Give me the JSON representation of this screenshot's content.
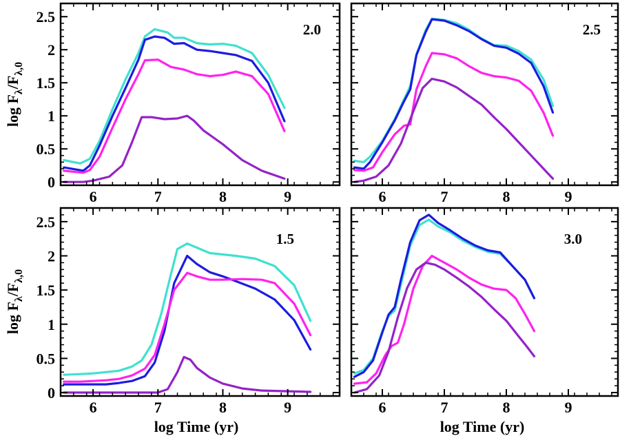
{
  "figure": {
    "ylabel_main": "log  F",
    "ylabel_sub1": "λ",
    "ylabel_mid": "/F",
    "ylabel_sub2": "λ,0",
    "xlabel": "log Time (yr)"
  },
  "chart_data": [
    {
      "type": "line",
      "label": "2.0",
      "xlim": [
        5.5,
        9.8
      ],
      "ylim": [
        -0.05,
        2.7
      ],
      "xticks": [
        6,
        7,
        8,
        9
      ],
      "xtick_labels": [
        "6",
        "7",
        "8",
        "9"
      ],
      "yticks": [
        0,
        0.5,
        1,
        1.5,
        2,
        2.5
      ],
      "ytick_labels": [
        "0",
        "0.5",
        "1",
        "1.5",
        "2",
        "2.5"
      ],
      "ylabel": "log Fλ/Fλ,0",
      "xlabel": "",
      "series": [
        {
          "name": "cyan",
          "color": "#40e0d0",
          "x": [
            5.55,
            5.8,
            5.95,
            6.1,
            6.3,
            6.5,
            6.7,
            6.8,
            6.95,
            7.15,
            7.25,
            7.4,
            7.5,
            7.6,
            7.8,
            8.0,
            8.2,
            8.45,
            8.7,
            8.95
          ],
          "y": [
            0.33,
            0.28,
            0.35,
            0.62,
            1.1,
            1.55,
            1.95,
            2.2,
            2.31,
            2.26,
            2.18,
            2.18,
            2.14,
            2.1,
            2.08,
            2.09,
            2.06,
            1.95,
            1.62,
            1.12
          ]
        },
        {
          "name": "blue",
          "color": "#1c1cdf",
          "x": [
            5.55,
            5.85,
            5.95,
            6.1,
            6.3,
            6.5,
            6.7,
            6.8,
            6.95,
            7.1,
            7.25,
            7.4,
            7.5,
            7.6,
            7.8,
            8.0,
            8.2,
            8.45,
            8.7,
            8.95
          ],
          "y": [
            0.22,
            0.17,
            0.25,
            0.55,
            1.0,
            1.42,
            1.85,
            2.15,
            2.2,
            2.18,
            2.09,
            2.1,
            2.05,
            2.0,
            1.98,
            1.95,
            1.92,
            1.83,
            1.5,
            0.92
          ]
        },
        {
          "name": "magenta",
          "color": "#ff22ee",
          "x": [
            5.55,
            5.85,
            5.95,
            6.1,
            6.3,
            6.5,
            6.7,
            6.8,
            7.0,
            7.2,
            7.4,
            7.6,
            7.8,
            8.0,
            8.2,
            8.45,
            8.7,
            8.95
          ],
          "y": [
            0.17,
            0.14,
            0.18,
            0.38,
            0.82,
            1.25,
            1.63,
            1.84,
            1.85,
            1.74,
            1.7,
            1.63,
            1.6,
            1.62,
            1.67,
            1.6,
            1.33,
            0.77
          ]
        },
        {
          "name": "purple",
          "color": "#9422c8",
          "x": [
            5.55,
            5.85,
            6.0,
            6.25,
            6.45,
            6.6,
            6.75,
            6.9,
            7.1,
            7.3,
            7.45,
            7.55,
            7.7,
            8.0,
            8.3,
            8.6,
            8.95
          ],
          "y": [
            0.0,
            0.0,
            0.02,
            0.08,
            0.25,
            0.6,
            0.98,
            0.98,
            0.95,
            0.96,
            1.0,
            0.93,
            0.78,
            0.57,
            0.33,
            0.17,
            0.05
          ]
        }
      ]
    },
    {
      "type": "line",
      "label": "2.5",
      "xlim": [
        5.5,
        9.8
      ],
      "ylim": [
        -0.05,
        2.7
      ],
      "xticks": [
        6,
        7,
        8,
        9
      ],
      "xtick_labels": [
        "6",
        "7",
        "8",
        "9"
      ],
      "yticks": [
        0,
        0.5,
        1,
        1.5,
        2,
        2.5
      ],
      "ytick_labels": [
        "",
        "",
        "",
        "",
        "",
        ""
      ],
      "ylabel": "",
      "xlabel": "",
      "series": [
        {
          "name": "cyan",
          "color": "#40e0d0",
          "x": [
            5.55,
            5.7,
            5.8,
            6.0,
            6.2,
            6.35,
            6.45,
            6.55,
            6.7,
            6.8,
            7.0,
            7.2,
            7.4,
            7.6,
            7.8,
            8.0,
            8.2,
            8.4,
            8.6,
            8.75
          ],
          "y": [
            0.32,
            0.3,
            0.38,
            0.62,
            0.95,
            1.25,
            1.45,
            1.93,
            2.3,
            2.47,
            2.45,
            2.4,
            2.3,
            2.17,
            2.07,
            2.06,
            1.98,
            1.85,
            1.55,
            1.15
          ]
        },
        {
          "name": "blue",
          "color": "#1c1cdf",
          "x": [
            5.55,
            5.7,
            5.8,
            6.0,
            6.2,
            6.35,
            6.45,
            6.55,
            6.7,
            6.8,
            7.0,
            7.2,
            7.4,
            7.6,
            7.8,
            8.0,
            8.2,
            8.4,
            8.6,
            8.75
          ],
          "y": [
            0.22,
            0.2,
            0.3,
            0.6,
            0.93,
            1.22,
            1.4,
            1.92,
            2.27,
            2.46,
            2.44,
            2.37,
            2.28,
            2.16,
            2.06,
            2.03,
            1.94,
            1.8,
            1.45,
            1.05
          ]
        },
        {
          "name": "magenta",
          "color": "#ff22ee",
          "x": [
            5.55,
            5.7,
            5.85,
            6.0,
            6.2,
            6.35,
            6.45,
            6.55,
            6.7,
            6.8,
            7.0,
            7.2,
            7.4,
            7.6,
            7.8,
            8.0,
            8.2,
            8.4,
            8.6,
            8.75
          ],
          "y": [
            0.18,
            0.17,
            0.22,
            0.45,
            0.72,
            0.85,
            0.87,
            1.4,
            1.75,
            1.95,
            1.93,
            1.87,
            1.75,
            1.65,
            1.6,
            1.58,
            1.53,
            1.38,
            1.05,
            0.7
          ]
        },
        {
          "name": "purple",
          "color": "#9422c8",
          "x": [
            5.55,
            5.7,
            5.9,
            6.1,
            6.3,
            6.5,
            6.65,
            6.8,
            7.0,
            7.2,
            7.4,
            7.6,
            7.8,
            8.0,
            8.2,
            8.4,
            8.6,
            8.75
          ],
          "y": [
            0.0,
            0.02,
            0.08,
            0.25,
            0.58,
            1.07,
            1.42,
            1.56,
            1.52,
            1.43,
            1.3,
            1.17,
            0.98,
            0.8,
            0.6,
            0.4,
            0.2,
            0.05
          ]
        }
      ]
    },
    {
      "type": "line",
      "label": "1.5",
      "xlim": [
        5.5,
        9.8
      ],
      "ylim": [
        -0.05,
        2.7
      ],
      "xticks": [
        6,
        7,
        8,
        9
      ],
      "xtick_labels": [
        "6",
        "7",
        "8",
        "9"
      ],
      "yticks": [
        0,
        0.5,
        1,
        1.5,
        2,
        2.5
      ],
      "ytick_labels": [
        "0",
        "0.5",
        "1",
        "1.5",
        "2",
        "2.5"
      ],
      "ylabel": "log Fλ/Fλ,0",
      "xlabel": "log Time (yr)",
      "series": [
        {
          "name": "cyan",
          "color": "#40e0d0",
          "x": [
            5.55,
            5.8,
            6.0,
            6.2,
            6.4,
            6.6,
            6.75,
            6.9,
            7.05,
            7.2,
            7.3,
            7.45,
            7.6,
            7.8,
            8.0,
            8.2,
            8.5,
            8.8,
            9.1,
            9.35
          ],
          "y": [
            0.26,
            0.27,
            0.28,
            0.3,
            0.32,
            0.38,
            0.47,
            0.7,
            1.15,
            1.73,
            2.1,
            2.18,
            2.12,
            2.04,
            2.02,
            2.0,
            1.96,
            1.85,
            1.57,
            1.05
          ]
        },
        {
          "name": "blue",
          "color": "#1c1cdf",
          "x": [
            5.55,
            5.8,
            6.0,
            6.2,
            6.4,
            6.6,
            6.8,
            6.95,
            7.1,
            7.25,
            7.45,
            7.6,
            7.8,
            8.0,
            8.2,
            8.5,
            8.8,
            9.1,
            9.35
          ],
          "y": [
            0.12,
            0.12,
            0.12,
            0.12,
            0.14,
            0.17,
            0.24,
            0.44,
            0.9,
            1.6,
            2.0,
            1.88,
            1.76,
            1.7,
            1.63,
            1.52,
            1.36,
            1.06,
            0.63
          ]
        },
        {
          "name": "magenta",
          "color": "#ff22ee",
          "x": [
            5.55,
            5.8,
            6.0,
            6.2,
            6.4,
            6.6,
            6.8,
            6.95,
            7.1,
            7.25,
            7.45,
            7.6,
            7.8,
            8.0,
            8.3,
            8.6,
            8.8,
            9.1,
            9.35
          ],
          "y": [
            0.16,
            0.16,
            0.17,
            0.18,
            0.2,
            0.25,
            0.35,
            0.55,
            1.0,
            1.5,
            1.75,
            1.7,
            1.65,
            1.65,
            1.66,
            1.65,
            1.6,
            1.3,
            0.84
          ]
        },
        {
          "name": "purple",
          "color": "#9422c8",
          "x": [
            5.55,
            6.0,
            6.5,
            7.0,
            7.15,
            7.3,
            7.4,
            7.5,
            7.6,
            7.8,
            8.0,
            8.3,
            8.6,
            9.0,
            9.35
          ],
          "y": [
            0.0,
            0.0,
            0.0,
            0.0,
            0.05,
            0.3,
            0.52,
            0.48,
            0.36,
            0.22,
            0.13,
            0.06,
            0.03,
            0.02,
            0.01
          ]
        }
      ]
    },
    {
      "type": "line",
      "label": "3.0",
      "xlim": [
        5.5,
        9.8
      ],
      "ylim": [
        -0.05,
        2.7
      ],
      "xticks": [
        6,
        7,
        8,
        9
      ],
      "xtick_labels": [
        "6",
        "7",
        "8",
        "9"
      ],
      "yticks": [
        0,
        0.5,
        1,
        1.5,
        2,
        2.5
      ],
      "ytick_labels": [
        "",
        "",
        "",
        "",
        "",
        ""
      ],
      "ylabel": "",
      "xlabel": "log Time (yr)",
      "series": [
        {
          "name": "cyan",
          "color": "#40e0d0",
          "x": [
            5.55,
            5.7,
            5.85,
            6.0,
            6.1,
            6.2,
            6.3,
            6.45,
            6.6,
            6.75,
            6.9,
            7.1,
            7.3,
            7.5,
            7.7,
            7.9,
            8.1,
            8.3,
            8.45
          ],
          "y": [
            0.28,
            0.33,
            0.5,
            0.9,
            1.12,
            1.2,
            1.58,
            2.15,
            2.45,
            2.53,
            2.43,
            2.34,
            2.22,
            2.13,
            2.06,
            2.03,
            1.85,
            1.65,
            1.38
          ]
        },
        {
          "name": "blue",
          "color": "#1c1cdf",
          "x": [
            5.55,
            5.7,
            5.85,
            6.0,
            6.1,
            6.2,
            6.3,
            6.45,
            6.6,
            6.75,
            6.9,
            7.1,
            7.3,
            7.5,
            7.7,
            7.9,
            8.1,
            8.3,
            8.45
          ],
          "y": [
            0.23,
            0.3,
            0.47,
            0.88,
            1.14,
            1.25,
            1.65,
            2.2,
            2.52,
            2.6,
            2.48,
            2.37,
            2.25,
            2.15,
            2.08,
            2.05,
            1.85,
            1.65,
            1.38
          ]
        },
        {
          "name": "magenta",
          "color": "#ff22ee",
          "x": [
            5.55,
            5.75,
            5.9,
            6.05,
            6.15,
            6.25,
            6.35,
            6.5,
            6.65,
            6.8,
            7.0,
            7.2,
            7.4,
            7.6,
            7.8,
            8.0,
            8.15,
            8.3,
            8.45
          ],
          "y": [
            0.13,
            0.15,
            0.28,
            0.55,
            0.68,
            0.73,
            1.0,
            1.52,
            1.85,
            2.0,
            1.9,
            1.8,
            1.68,
            1.58,
            1.52,
            1.5,
            1.38,
            1.15,
            0.9
          ]
        },
        {
          "name": "purple",
          "color": "#9422c8",
          "x": [
            5.55,
            5.75,
            5.95,
            6.1,
            6.25,
            6.4,
            6.55,
            6.7,
            6.85,
            7.0,
            7.2,
            7.4,
            7.6,
            7.8,
            8.0,
            8.2,
            8.35,
            8.45
          ],
          "y": [
            0.0,
            0.05,
            0.25,
            0.6,
            1.1,
            1.53,
            1.8,
            1.9,
            1.87,
            1.8,
            1.68,
            1.55,
            1.4,
            1.22,
            1.05,
            0.82,
            0.65,
            0.53
          ]
        }
      ]
    }
  ]
}
